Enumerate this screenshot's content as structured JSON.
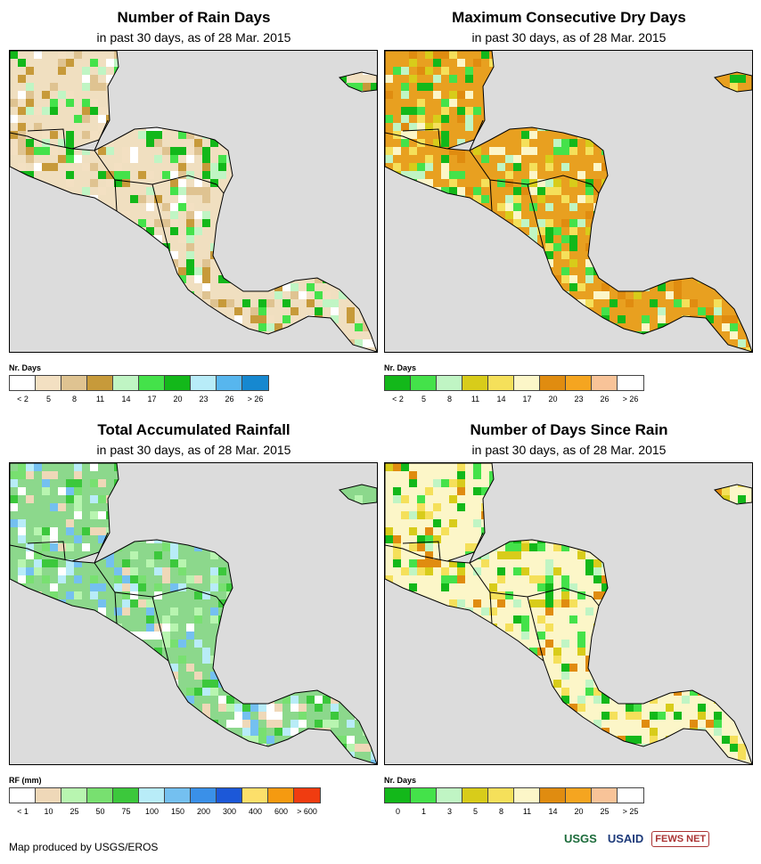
{
  "panels": [
    {
      "title": "Number of Rain Days",
      "subtitle": "in past 30 days, as of 28 Mar. 2015",
      "legend_title": "Nr. Days",
      "legend_colors": [
        "#ffffff",
        "#f3e0c2",
        "#dfc391",
        "#c79a3a",
        "#c0f5c4",
        "#44e24a",
        "#13b81a",
        "#b8ecf8",
        "#57b6ee",
        "#1688d0"
      ],
      "legend_ticks": [
        "< 2",
        "5",
        "8",
        "11",
        "14",
        "17",
        "20",
        "23",
        "26",
        "> 26"
      ],
      "land_color": "#f0dfc0"
    },
    {
      "title": "Maximum Consecutive Dry Days",
      "subtitle": "in past 30 days, as of 28 Mar. 2015",
      "legend_title": "Nr. Days",
      "legend_colors": [
        "#13b81a",
        "#44e24a",
        "#c0f5c4",
        "#d8cc1a",
        "#f5e05a",
        "#fcf6c8",
        "#e08c10",
        "#f5a520",
        "#f8c398",
        "#ffffff"
      ],
      "legend_ticks": [
        "< 2",
        "5",
        "8",
        "11",
        "14",
        "17",
        "20",
        "23",
        "26",
        "> 26"
      ],
      "land_color": "#e8a020"
    },
    {
      "title": "Total Accumulated Rainfall",
      "subtitle": "in past 30 days, as of 28 Mar. 2015",
      "legend_title": "RF (mm)",
      "legend_colors": [
        "#ffffff",
        "#efd8b8",
        "#b8f5b0",
        "#78e070",
        "#3cc83c",
        "#b8ecf8",
        "#74c0f0",
        "#3a90e8",
        "#1c58d8",
        "#fcdf6a",
        "#f59a10",
        "#f03c10"
      ],
      "legend_ticks": [
        "< 1",
        "10",
        "25",
        "50",
        "75",
        "100",
        "150",
        "200",
        "300",
        "400",
        "600",
        "> 600"
      ],
      "land_color": "#8cd88c"
    },
    {
      "title": "Number of Days Since Rain",
      "subtitle": "in past 30 days, as of 28 Mar. 2015",
      "legend_title": "Nr. Days",
      "legend_colors": [
        "#13b81a",
        "#44e24a",
        "#c0f5c4",
        "#d8cc1a",
        "#f5e05a",
        "#fcf6c8",
        "#e08c10",
        "#f5a520",
        "#f8c398",
        "#ffffff"
      ],
      "legend_ticks": [
        "0",
        "1",
        "3",
        "5",
        "8",
        "11",
        "14",
        "20",
        "25",
        "> 25"
      ],
      "land_color": "#fcf6c8"
    }
  ],
  "credit": "Map produced by USGS/EROS",
  "logos": {
    "usgs": "USGS",
    "usaid": "USAID",
    "fews": "FEWS NET"
  }
}
